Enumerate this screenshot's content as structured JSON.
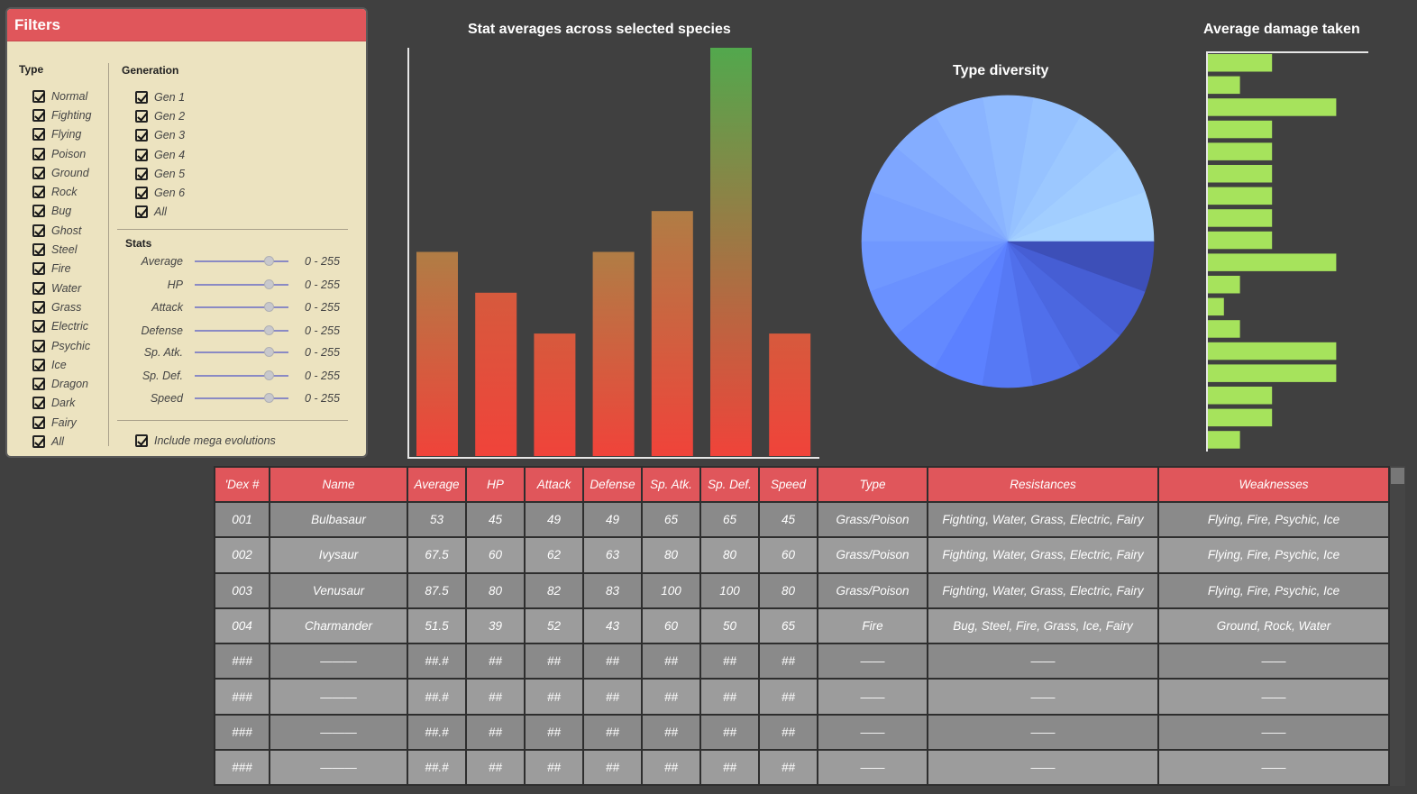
{
  "filters": {
    "title": "Filters",
    "type_title": "Type",
    "types": [
      "Normal",
      "Fighting",
      "Flying",
      "Poison",
      "Ground",
      "Rock",
      "Bug",
      "Ghost",
      "Steel",
      "Fire",
      "Water",
      "Grass",
      "Electric",
      "Psychic",
      "Ice",
      "Dragon",
      "Dark",
      "Fairy",
      "All"
    ],
    "generation_title": "Generation",
    "generations": [
      "Gen 1",
      "Gen 2",
      "Gen 3",
      "Gen 4",
      "Gen 5",
      "Gen 6",
      "All"
    ],
    "stats_title": "Stats",
    "stats": [
      {
        "name": "Average",
        "range": "0 - 255",
        "level": 0.8
      },
      {
        "name": "HP",
        "range": "0 - 255",
        "level": 0.8
      },
      {
        "name": "Attack",
        "range": "0 - 255",
        "level": 0.8
      },
      {
        "name": "Defense",
        "range": "0 - 255",
        "level": 0.8
      },
      {
        "name": "Sp. Atk.",
        "range": "0 - 255",
        "level": 0.8
      },
      {
        "name": "Sp. Def.",
        "range": "0 - 255",
        "level": 0.8
      },
      {
        "name": "Speed",
        "range": "0 - 255",
        "level": 0.8
      }
    ],
    "mega_label": "Include mega evolutions",
    "checkbox_icon": "checkbox-checked-icon"
  },
  "chart_data": [
    {
      "type": "bar",
      "title": "Stat averages across selected species",
      "values": [
        100,
        80,
        60,
        100,
        120,
        200,
        60
      ],
      "ylim": [
        0,
        200
      ],
      "colors": {
        "bottom": "#f0433a",
        "top_mid": "#b07d45",
        "top_high": "#52a84d"
      }
    },
    {
      "type": "pie",
      "title": "Type diversity",
      "slices": [
        1,
        1,
        1,
        1,
        1,
        1,
        1,
        1,
        1,
        1,
        1,
        1,
        1,
        1,
        1,
        1,
        1,
        1
      ],
      "colors": [
        "#a8d4ff",
        "#a2ceff",
        "#9cc8ff",
        "#96c2ff",
        "#90bbff",
        "#8ab4ff",
        "#84adff",
        "#7ea6ff",
        "#78a0ff",
        "#7098ff",
        "#6a91ff",
        "#6389ff",
        "#5c81ff",
        "#5679f5",
        "#506feb",
        "#4b67e0",
        "#465ed4",
        "#3d4fb8"
      ]
    },
    {
      "type": "bar",
      "orientation": "horizontal",
      "title": "Average damage taken",
      "values": [
        1,
        0.5,
        2,
        1,
        1,
        1,
        1,
        1,
        1,
        2,
        0.5,
        0.25,
        0.5,
        2,
        2,
        1,
        1,
        0.5
      ],
      "xlim": [
        0,
        2.5
      ],
      "color": "#a6e35c"
    }
  ],
  "table": {
    "headers": [
      "'Dex #",
      "Name",
      "Average",
      "HP",
      "Attack",
      "Defense",
      "Sp. Atk.",
      "Sp. Def.",
      "Speed",
      "Type",
      "Resistances",
      "Weaknesses"
    ],
    "rows": [
      [
        "001",
        "Bulbasaur",
        "53",
        "45",
        "49",
        "49",
        "65",
        "65",
        "45",
        "Grass/Poison",
        "Fighting, Water, Grass, Electric, Fairy",
        "Flying, Fire, Psychic, Ice"
      ],
      [
        "002",
        "Ivysaur",
        "67.5",
        "60",
        "62",
        "63",
        "80",
        "80",
        "60",
        "Grass/Poison",
        "Fighting, Water, Grass, Electric, Fairy",
        "Flying, Fire, Psychic, Ice"
      ],
      [
        "003",
        "Venusaur",
        "87.5",
        "80",
        "82",
        "83",
        "100",
        "100",
        "80",
        "Grass/Poison",
        "Fighting, Water, Grass, Electric, Fairy",
        "Flying, Fire, Psychic, Ice"
      ],
      [
        "004",
        "Charmander",
        "51.5",
        "39",
        "52",
        "43",
        "60",
        "50",
        "65",
        "Fire",
        "Bug, Steel, Fire, Grass, Ice, Fairy",
        "Ground, Rock, Water"
      ],
      [
        "###",
        "———",
        "##.#",
        "##",
        "##",
        "##",
        "##",
        "##",
        "##",
        "——",
        "——",
        "——"
      ],
      [
        "###",
        "———",
        "##.#",
        "##",
        "##",
        "##",
        "##",
        "##",
        "##",
        "——",
        "——",
        "——"
      ],
      [
        "###",
        "———",
        "##.#",
        "##",
        "##",
        "##",
        "##",
        "##",
        "##",
        "——",
        "——",
        "——"
      ],
      [
        "###",
        "———",
        "##.#",
        "##",
        "##",
        "##",
        "##",
        "##",
        "##",
        "——",
        "——",
        "——"
      ]
    ]
  }
}
